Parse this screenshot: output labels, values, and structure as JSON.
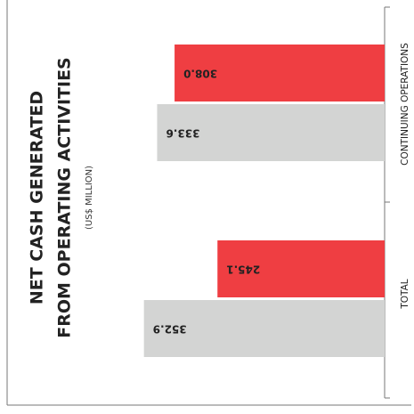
{
  "chart_data": {
    "type": "bar",
    "orientation": "horizontal",
    "title": [
      "NET CASH GENERATED",
      "FROM OPERATING ACTIVITIES"
    ],
    "subtitle": "(US$ MILLION)",
    "categories": [
      "CONTINUING OPERATIONS",
      "TOTAL"
    ],
    "series": [
      {
        "color": "#ef3e42",
        "values": [
          308.0,
          245.1
        ],
        "value_labels": [
          "308.0",
          "245.1"
        ]
      },
      {
        "color": "#d3d4d3",
        "values": [
          333.6,
          352.9
        ],
        "value_labels": [
          "333.6",
          "352.9"
        ]
      }
    ]
  }
}
